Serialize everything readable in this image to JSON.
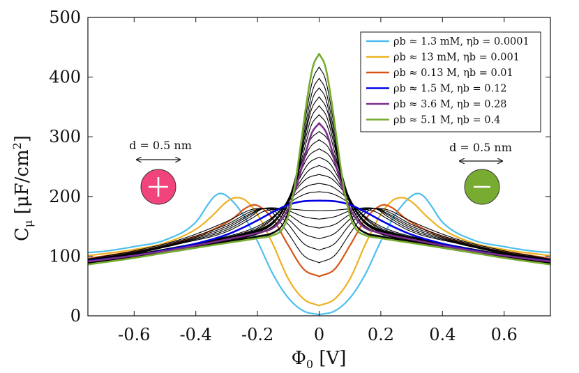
{
  "chart_data": {
    "type": "line",
    "title": "",
    "xlabel": "Φ₀ [V]",
    "ylabel": "Cμ [μF/cm²]",
    "xlim": [
      -0.75,
      0.75
    ],
    "ylim": [
      0,
      500
    ],
    "xticks": [
      -0.6,
      -0.4,
      -0.2,
      0,
      0.2,
      0.4,
      0.6
    ],
    "xtick_labels": [
      "-0.6",
      "-0.4",
      "-0.2",
      "0",
      "0.2",
      "0.4",
      "0.6"
    ],
    "yticks": [
      0,
      100,
      200,
      300,
      400,
      500
    ],
    "ytick_labels": [
      "0",
      "100",
      "200",
      "300",
      "400",
      "500"
    ],
    "grid": false,
    "legend_position": "top-right",
    "series": [
      {
        "name": "ρb ≈ 1.3 mM, ηb = 0.0001",
        "legend": true,
        "color": "#4DBEEE",
        "width": 2.2,
        "x": [
          0,
          0.05,
          0.1,
          0.15,
          0.2,
          0.25,
          0.3,
          0.32,
          0.34,
          0.36,
          0.4,
          0.5,
          0.6,
          0.7,
          0.75
        ],
        "values": [
          2,
          8,
          30,
          70,
          125,
          172,
          201,
          205,
          200,
          187,
          157,
          127,
          116,
          108,
          106
        ]
      },
      {
        "name": "ρb ≈ 13 mM, ηb = 0.001",
        "legend": true,
        "color": "#EDB120",
        "width": 2.2,
        "x": [
          0,
          0.05,
          0.1,
          0.15,
          0.2,
          0.24,
          0.27,
          0.3,
          0.35,
          0.4,
          0.5,
          0.6,
          0.7,
          0.75
        ],
        "values": [
          17,
          28,
          62,
          120,
          170,
          194,
          198,
          191,
          166,
          145,
          122,
          111,
          104,
          101
        ]
      },
      {
        "name": "ρb ≈ 0.13 M, ηb = 0.01",
        "legend": true,
        "color": "#D95319",
        "width": 2.2,
        "x": [
          0,
          0.05,
          0.1,
          0.15,
          0.19,
          0.21,
          0.24,
          0.28,
          0.35,
          0.45,
          0.55,
          0.65,
          0.75
        ],
        "values": [
          66,
          78,
          118,
          162,
          182,
          186,
          180,
          163,
          143,
          125,
          112,
          104,
          96
        ]
      },
      {
        "name": "ρb ≈ 1.5 M, ηb = 0.12",
        "legend": true,
        "color": "#0000E6",
        "width": 2.6,
        "x": [
          0,
          0.05,
          0.1,
          0.15,
          0.2,
          0.25,
          0.3,
          0.4,
          0.5,
          0.6,
          0.75
        ],
        "values": [
          193,
          192,
          186,
          174,
          160,
          147,
          136,
          121,
          110,
          101,
          92
        ]
      },
      {
        "name": "ρb ≈ 3.6 M, ηb = 0.28",
        "legend": true,
        "color": "#7E2F8E",
        "width": 2.6,
        "x": [
          0,
          0.025,
          0.05,
          0.075,
          0.1,
          0.125,
          0.15,
          0.2,
          0.3,
          0.45,
          0.6,
          0.75
        ],
        "values": [
          323,
          305,
          260,
          215,
          180,
          159,
          147,
          139,
          128,
          113,
          101,
          91
        ]
      },
      {
        "name": "ρb ≈ 5.1 M, ηb = 0.4",
        "legend": true,
        "color": "#77AC30",
        "width": 2.6,
        "x": [
          0,
          0.02,
          0.04,
          0.06,
          0.08,
          0.1,
          0.12,
          0.15,
          0.2,
          0.3,
          0.45,
          0.6,
          0.75
        ],
        "values": [
          439,
          418,
          360,
          285,
          215,
          168,
          145,
          135,
          130,
          122,
          110,
          97,
          86
        ]
      },
      {
        "legend": false,
        "color": "#000000",
        "width": 1.1,
        "x": [
          0,
          0.05,
          0.1,
          0.15,
          0.18,
          0.22,
          0.3,
          0.45,
          0.6,
          0.75
        ],
        "values": [
          89,
          101,
          138,
          172,
          180,
          178,
          158,
          128,
          109,
          95
        ]
      },
      {
        "legend": false,
        "color": "#000000",
        "width": 1.1,
        "x": [
          0,
          0.05,
          0.1,
          0.15,
          0.18,
          0.22,
          0.3,
          0.45,
          0.6,
          0.75
        ],
        "values": [
          110,
          121,
          153,
          177,
          180,
          175,
          153,
          126,
          107,
          94
        ]
      },
      {
        "legend": false,
        "color": "#000000",
        "width": 1.1,
        "x": [
          0,
          0.05,
          0.1,
          0.15,
          0.18,
          0.22,
          0.3,
          0.45,
          0.6,
          0.75
        ],
        "values": [
          129,
          138,
          162,
          179,
          180,
          172,
          150,
          124,
          106,
          94
        ]
      },
      {
        "legend": false,
        "color": "#000000",
        "width": 1.1,
        "x": [
          0,
          0.05,
          0.1,
          0.15,
          0.18,
          0.22,
          0.3,
          0.45,
          0.6,
          0.75
        ],
        "values": [
          147,
          153,
          170,
          180,
          180,
          170,
          147,
          123,
          106,
          93
        ]
      },
      {
        "legend": false,
        "color": "#000000",
        "width": 1.1,
        "x": [
          0,
          0.05,
          0.1,
          0.15,
          0.18,
          0.22,
          0.3,
          0.45,
          0.6,
          0.75
        ],
        "values": [
          162,
          166,
          176,
          181,
          180,
          167,
          144,
          122,
          105,
          93
        ]
      },
      {
        "legend": false,
        "color": "#000000",
        "width": 1.1,
        "x": [
          0,
          0.05,
          0.1,
          0.15,
          0.18,
          0.22,
          0.3,
          0.45,
          0.6,
          0.75
        ],
        "values": [
          176,
          177,
          179,
          178,
          175,
          163,
          141,
          121,
          104,
          92
        ]
      },
      {
        "legend": false,
        "color": "#000000",
        "width": 1.1,
        "x": [
          0,
          0.04,
          0.08,
          0.12,
          0.16,
          0.2,
          0.25,
          0.35,
          0.5,
          0.65,
          0.75
        ],
        "values": [
          208,
          205,
          195,
          179,
          162,
          150,
          140,
          127,
          112,
          99,
          92
        ]
      },
      {
        "legend": false,
        "color": "#000000",
        "width": 1.1,
        "x": [
          0,
          0.04,
          0.08,
          0.12,
          0.16,
          0.2,
          0.25,
          0.35,
          0.5,
          0.65,
          0.75
        ],
        "values": [
          222,
          217,
          202,
          180,
          160,
          147,
          138,
          126,
          111,
          99,
          91
        ]
      },
      {
        "legend": false,
        "color": "#000000",
        "width": 1.1,
        "x": [
          0,
          0.04,
          0.08,
          0.12,
          0.16,
          0.2,
          0.25,
          0.35,
          0.5,
          0.65,
          0.75
        ],
        "values": [
          237,
          230,
          208,
          180,
          158,
          145,
          137,
          125,
          111,
          99,
          91
        ]
      },
      {
        "legend": false,
        "color": "#000000",
        "width": 1.1,
        "x": [
          0,
          0.035,
          0.07,
          0.1,
          0.13,
          0.16,
          0.2,
          0.3,
          0.45,
          0.6,
          0.75
        ],
        "values": [
          252,
          243,
          218,
          192,
          169,
          154,
          144,
          131,
          115,
          102,
          91
        ]
      },
      {
        "legend": false,
        "color": "#000000",
        "width": 1.1,
        "x": [
          0,
          0.035,
          0.07,
          0.1,
          0.13,
          0.16,
          0.2,
          0.3,
          0.45,
          0.6,
          0.75
        ],
        "values": [
          266,
          255,
          224,
          194,
          169,
          153,
          143,
          130,
          114,
          101,
          91
        ]
      },
      {
        "legend": false,
        "color": "#000000",
        "width": 1.1,
        "x": [
          0,
          0.035,
          0.07,
          0.1,
          0.13,
          0.16,
          0.2,
          0.3,
          0.45,
          0.6,
          0.75
        ],
        "values": [
          280,
          267,
          230,
          196,
          169,
          152,
          142,
          129,
          113,
          101,
          91
        ]
      },
      {
        "legend": false,
        "color": "#000000",
        "width": 1.1,
        "x": [
          0,
          0.03,
          0.06,
          0.09,
          0.12,
          0.15,
          0.2,
          0.3,
          0.45,
          0.6,
          0.75
        ],
        "values": [
          295,
          282,
          246,
          206,
          174,
          155,
          141,
          129,
          113,
          101,
          91
        ]
      },
      {
        "legend": false,
        "color": "#000000",
        "width": 1.1,
        "x": [
          0,
          0.03,
          0.06,
          0.09,
          0.12,
          0.15,
          0.2,
          0.3,
          0.45,
          0.6,
          0.75
        ],
        "values": [
          309,
          294,
          252,
          208,
          174,
          154,
          140,
          128,
          113,
          101,
          91
        ]
      },
      {
        "legend": false,
        "color": "#000000",
        "width": 1.1,
        "x": [
          0,
          0.025,
          0.05,
          0.075,
          0.1,
          0.125,
          0.15,
          0.2,
          0.3,
          0.45,
          0.6,
          0.75
        ],
        "values": [
          337,
          320,
          275,
          227,
          188,
          164,
          150,
          139,
          127,
          112,
          100,
          90
        ]
      },
      {
        "legend": false,
        "color": "#000000",
        "width": 1.1,
        "x": [
          0,
          0.025,
          0.05,
          0.075,
          0.1,
          0.125,
          0.15,
          0.2,
          0.3,
          0.45,
          0.6,
          0.75
        ],
        "values": [
          352,
          333,
          284,
          232,
          190,
          164,
          150,
          138,
          126,
          112,
          99,
          89
        ]
      },
      {
        "legend": false,
        "color": "#000000",
        "width": 1.1,
        "x": [
          0,
          0.025,
          0.05,
          0.075,
          0.1,
          0.125,
          0.15,
          0.2,
          0.3,
          0.45,
          0.6,
          0.75
        ],
        "values": [
          367,
          346,
          292,
          236,
          192,
          164,
          149,
          137,
          125,
          111,
          99,
          89
        ]
      },
      {
        "legend": false,
        "color": "#000000",
        "width": 1.1,
        "x": [
          0,
          0.02,
          0.04,
          0.06,
          0.08,
          0.1,
          0.12,
          0.15,
          0.2,
          0.3,
          0.45,
          0.6,
          0.75
        ],
        "values": [
          382,
          366,
          321,
          262,
          209,
          173,
          152,
          140,
          134,
          124,
          111,
          98,
          88
        ]
      },
      {
        "legend": false,
        "color": "#000000",
        "width": 1.1,
        "x": [
          0,
          0.02,
          0.04,
          0.06,
          0.08,
          0.1,
          0.12,
          0.15,
          0.2,
          0.3,
          0.45,
          0.6,
          0.75
        ],
        "values": [
          398,
          380,
          332,
          270,
          213,
          175,
          152,
          139,
          133,
          123,
          110,
          98,
          88
        ]
      },
      {
        "legend": false,
        "color": "#000000",
        "width": 1.1,
        "x": [
          0,
          0.02,
          0.04,
          0.06,
          0.08,
          0.1,
          0.12,
          0.15,
          0.2,
          0.3,
          0.45,
          0.6,
          0.75
        ],
        "values": [
          417,
          397,
          345,
          278,
          216,
          176,
          151,
          138,
          132,
          122,
          109,
          97,
          87
        ]
      }
    ],
    "annotations": {
      "left": {
        "label": "d = 0.5 nm",
        "ion": "+",
        "color": "#F0447A",
        "x": -0.52
      },
      "right": {
        "label": "d = 0.5 nm",
        "ion": "−",
        "color": "#77AC30",
        "x": 0.53
      }
    }
  }
}
